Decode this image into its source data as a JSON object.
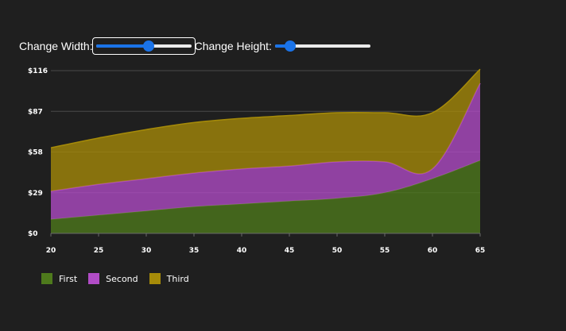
{
  "controls": {
    "width_label": "Change Width:",
    "height_label": "Change Height:",
    "width_value": 0.55,
    "height_value": 0.16
  },
  "chart_data": {
    "type": "area",
    "stacked": true,
    "x": [
      20,
      25,
      30,
      35,
      40,
      45,
      50,
      55,
      60,
      65
    ],
    "x_ticks": [
      "20",
      "25",
      "30",
      "35",
      "40",
      "45",
      "50",
      "55",
      "60",
      "65"
    ],
    "y_ticks": [
      "$0",
      "$29",
      "$58",
      "$87",
      "$116"
    ],
    "ylim": [
      0,
      116
    ],
    "grid": true,
    "legend_position": "bottom-left",
    "series": [
      {
        "name": "First",
        "color": "#4e7a1c",
        "values": [
          10,
          13,
          16,
          19,
          21,
          23,
          25,
          29,
          39,
          52
        ]
      },
      {
        "name": "Second",
        "color": "#b14cc6",
        "values": [
          20,
          22,
          23,
          24,
          25,
          25,
          26,
          22,
          7,
          55
        ]
      },
      {
        "name": "Third",
        "color": "#a68b09",
        "values": [
          31,
          33,
          35,
          36,
          36,
          36,
          35,
          35,
          40,
          10
        ]
      }
    ]
  }
}
